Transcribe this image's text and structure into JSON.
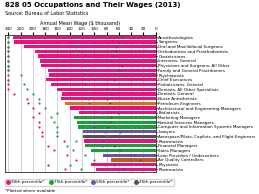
{
  "chart_data": {
    "type": "bar",
    "orientation": "horizontal",
    "title": "828 05 Occupations and Their Wages (2013)",
    "subtitle": "Source: Bureau of Labor Statistics",
    "xlabel": "Annual Mean Wage ($ thousand)",
    "annotations": [
      "*Plotted where available"
    ],
    "categories": [
      "Anesthesiologists",
      "Surgeons",
      "Oral and Maxillofacial Surgeons",
      "Orthodontists and Prosthodontists",
      "Obstetricians",
      "Internists, General",
      "Physicians and Surgeons, All Other",
      "Family and General Practitioners",
      "Psychiatrists",
      "Chief Executives",
      "Pediatricians, General",
      "Dentists, All Other Specialists",
      "Dentists, General",
      "Nurse Anesthetists",
      "Petroleum Engineers",
      "Architectural and Engineering Managers",
      "Podiatrists",
      "Marketing Managers",
      "Natural Sciences Managers",
      "Computer and Information Systems Managers",
      "Lawyers",
      "Aerospace/Pilots, Copilots, and Flight Engineers",
      "Pharmacists",
      "Financial Managers",
      "Sales Managers",
      "Loan Providers / Underwriters",
      "Air Quality Controllers",
      "Physicists",
      "Pharmacists"
    ],
    "values": [
      232,
      231,
      214,
      196,
      192,
      188,
      186,
      176,
      173,
      178,
      170,
      161,
      152,
      154,
      147,
      140,
      124,
      133,
      128,
      127,
      119,
      118,
      116,
      115,
      106,
      85,
      72,
      106,
      97
    ],
    "colors": [
      "#e8127c",
      "#e8127c",
      "#e8127c",
      "#e8127c",
      "#e8127c",
      "#e8127c",
      "#e8127c",
      "#e8127c",
      "#e8127c",
      "#e8127c",
      "#e8127c",
      "#e8127c",
      "#e8127c",
      "#e8127c",
      "#e07010",
      "#e8127c",
      "#e8127c",
      "#1a9e3c",
      "#1a9e3c",
      "#1a9e3c",
      "#7050a0",
      "#505050",
      "#e8127c",
      "#1a9e3c",
      "#1a9e3c",
      "#7050a0",
      "#b8601a",
      "#e8127c",
      "#e8127c"
    ],
    "series": [
      {
        "name": "90th percentile*",
        "type": "scatter",
        "color": "#e8127c",
        "values": [
          240,
          240,
          240,
          240,
          240,
          240,
          240,
          240,
          240,
          240,
          240,
          240,
          230,
          210,
          208,
          200,
          190,
          200,
          190,
          190,
          185,
          185,
          150,
          175,
          165,
          145,
          130,
          175,
          148
        ]
      },
      {
        "name": "75th percentile*",
        "type": "scatter",
        "color": "#1a9e3c",
        "values": [
          240,
          240,
          240,
          240,
          240,
          240,
          240,
          240,
          220,
          240,
          215,
          210,
          200,
          190,
          190,
          180,
          160,
          170,
          165,
          160,
          160,
          160,
          130,
          145,
          135,
          115,
          100,
          140,
          122
        ]
      },
      {
        "name": "50th percentile*",
        "type": "scatter",
        "color": "#7050a0",
        "values": [
          125,
          130,
          130,
          130,
          130,
          130,
          115,
          115,
          100,
          108,
          110,
          120,
          110,
          110,
          108,
          110,
          88,
          98,
          100,
          100,
          82,
          80,
          104,
          88,
          80,
          55,
          42,
          82,
          72
        ]
      },
      {
        "name": "25th percentile*",
        "type": "scatter",
        "color": "#505050",
        "values": [
          55,
          60,
          65,
          65,
          70,
          72,
          55,
          60,
          55,
          68,
          62,
          80,
          72,
          80,
          74,
          85,
          62,
          73,
          75,
          78,
          58,
          56,
          85,
          68,
          58,
          36,
          25,
          68,
          52
        ]
      }
    ],
    "xlim": [
      245,
      0
    ],
    "xticks": [
      0,
      20,
      40,
      60,
      80,
      100,
      120,
      140,
      160,
      180,
      200,
      220,
      240
    ],
    "grid": true,
    "legend": "lower left"
  }
}
